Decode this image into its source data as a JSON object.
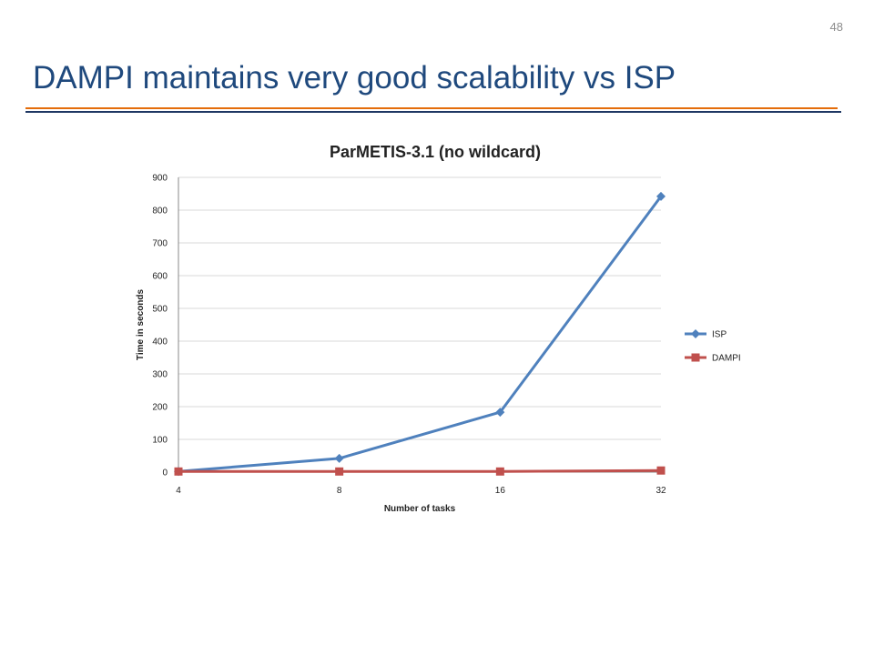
{
  "slide": {
    "number": "48",
    "title": "DAMPI maintains very good scalability vs ISP"
  },
  "chart_data": {
    "type": "line",
    "title": "ParMETIS-3.1 (no wildcard)",
    "xlabel": "Number of tasks",
    "ylabel": "Time in seconds",
    "categories": [
      "4",
      "8",
      "16",
      "32"
    ],
    "ylim": [
      0,
      900
    ],
    "yticks": [
      0,
      100,
      200,
      300,
      400,
      500,
      600,
      700,
      800,
      900
    ],
    "grid": "horizontal",
    "legend_position": "right",
    "series": [
      {
        "name": "ISP",
        "values": [
          2,
          42,
          183,
          842
        ],
        "color": "#4f81bd",
        "marker": "diamond"
      },
      {
        "name": "DAMPI",
        "values": [
          2,
          2,
          2,
          5
        ],
        "color": "#c0504d",
        "marker": "square"
      }
    ]
  }
}
